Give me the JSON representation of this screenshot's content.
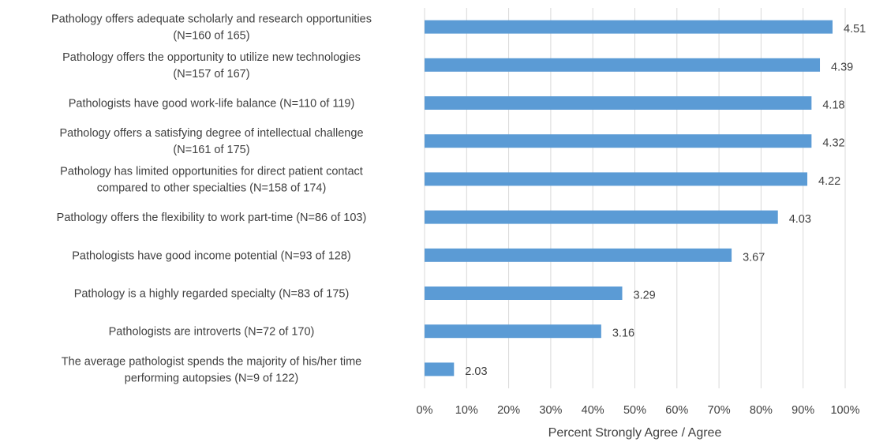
{
  "chart_data": {
    "type": "bar",
    "orientation": "horizontal",
    "categories": [
      [
        "Pathology offers adequate scholarly and research opportunities",
        "(N=160 of 165)"
      ],
      [
        "Pathology offers the opportunity to utilize new technologies",
        "(N=157 of 167)"
      ],
      [
        "Pathologists have good work-life balance (N=110 of 119)"
      ],
      [
        "Pathology offers a satisfying degree of intellectual challenge",
        "(N=161 of 175)"
      ],
      [
        "Pathology has limited opportunities for direct patient contact",
        "compared to other specialties (N=158 of 174)"
      ],
      [
        "Pathology offers the flexibility to work part-time (N=86 of 103)"
      ],
      [
        "Pathologists have good income potential (N=93 of 128)"
      ],
      [
        "Pathology is a highly regarded specialty (N=83 of 175)"
      ],
      [
        "Pathologists are introverts (N=72 of 170)"
      ],
      [
        "The average pathologist spends the majority of his/her time",
        "performing autopsies (N=9 of 122)"
      ]
    ],
    "values": [
      97,
      94,
      92,
      92,
      91,
      84,
      73,
      47,
      42,
      7
    ],
    "data_labels": [
      "4.51",
      "4.39",
      "4.18",
      "4.32",
      "4.22",
      "4.03",
      "3.67",
      "3.29",
      "3.16",
      "2.03"
    ],
    "x_ticks": [
      "0%",
      "10%",
      "20%",
      "30%",
      "40%",
      "50%",
      "60%",
      "70%",
      "80%",
      "90%",
      "100%"
    ],
    "xlim": [
      0,
      100
    ],
    "xlabel": "Percent Strongly Agree / Agree",
    "ylabel": "",
    "grid": true,
    "legend": "none",
    "colors": {
      "bar": "#5b9bd5",
      "grid": "#d9d9d9",
      "text": "#404040"
    }
  }
}
